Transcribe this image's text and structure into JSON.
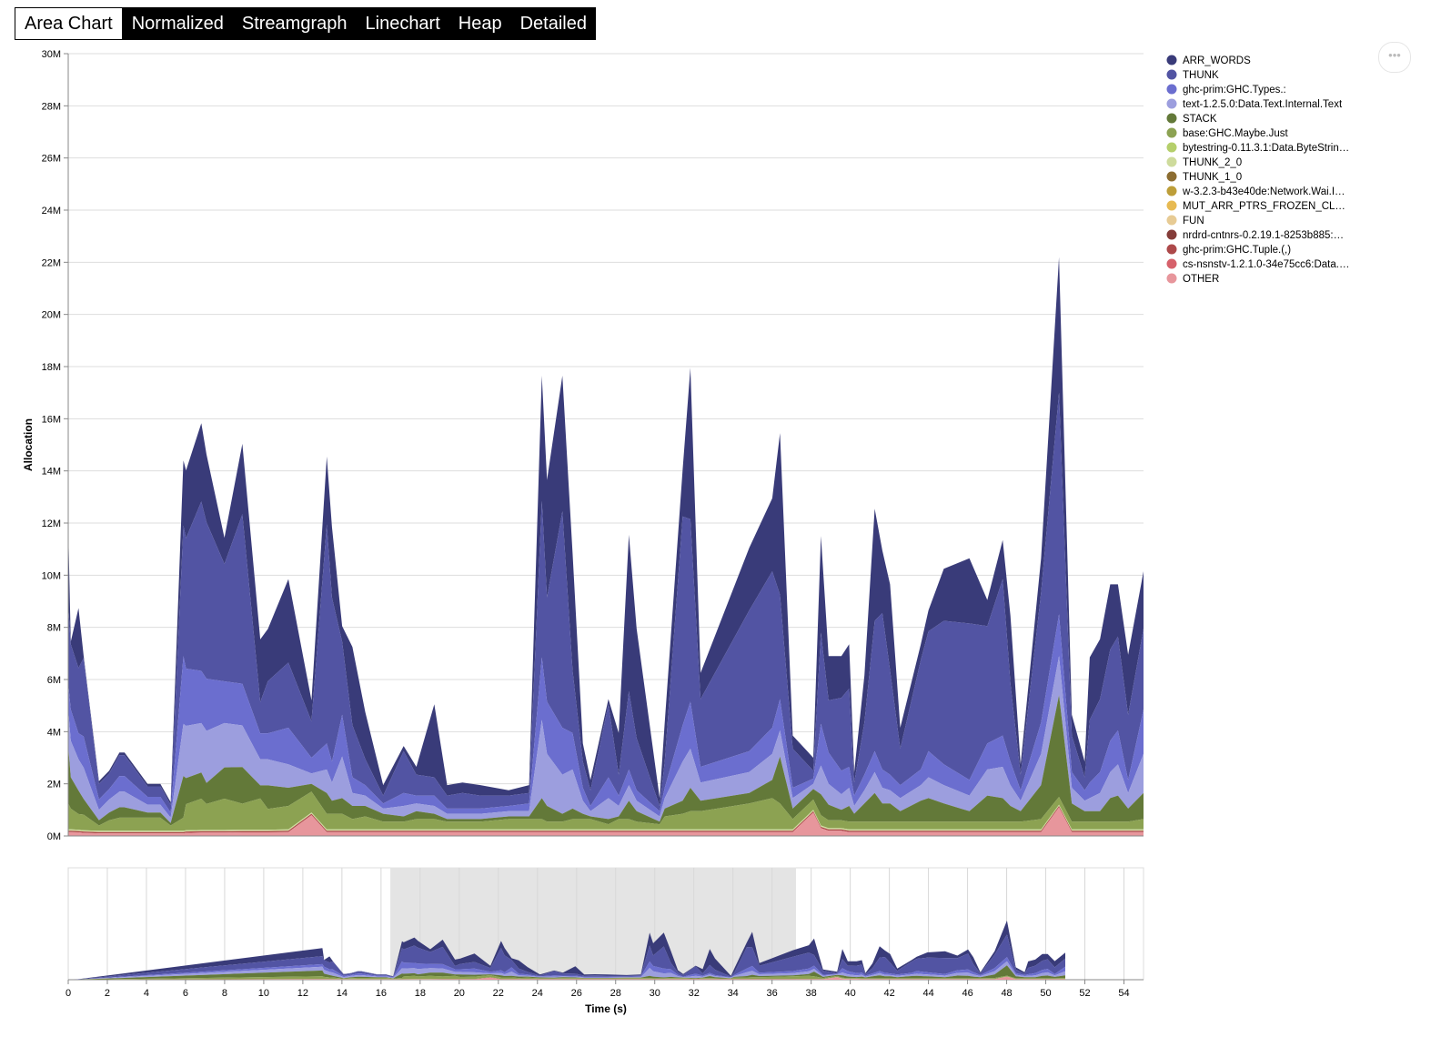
{
  "tabs": [
    {
      "label": "Area Chart",
      "active": true
    },
    {
      "label": "Normalized",
      "active": false
    },
    {
      "label": "Streamgraph",
      "active": false
    },
    {
      "label": "Linechart",
      "active": false
    },
    {
      "label": "Heap",
      "active": false
    },
    {
      "label": "Detailed",
      "active": false
    }
  ],
  "menu_icon": "more-horizontal-icon",
  "chart_data": {
    "type": "area",
    "stacked": true,
    "xlabel": "Time (s)",
    "ylabel": "Allocation",
    "xlim": [
      12.9,
      54.9
    ],
    "ylim": [
      0,
      30
    ],
    "y_unit_suffix": "M",
    "yticks": [
      "0M",
      "2M",
      "4M",
      "6M",
      "8M",
      "10M",
      "12M",
      "14M",
      "16M",
      "18M",
      "20M",
      "22M",
      "24M",
      "26M",
      "28M",
      "30M"
    ],
    "overview_xlim": [
      0,
      55
    ],
    "overview_xticks": [
      "0",
      "2",
      "4",
      "6",
      "8",
      "10",
      "12",
      "14",
      "16",
      "18",
      "20",
      "22",
      "24",
      "26",
      "28",
      "30",
      "32",
      "34",
      "36",
      "38",
      "40",
      "42",
      "44",
      "46",
      "48",
      "50",
      "52",
      "54"
    ],
    "brush_range": [
      16.5,
      37.2
    ],
    "grid": true,
    "legend_position": "right",
    "legend": [
      {
        "name": "ARR_WORDS",
        "color": "#393b79"
      },
      {
        "name": "THUNK",
        "color": "#5254a3"
      },
      {
        "name": "ghc-prim:GHC.Types.:",
        "color": "#6b6ecf"
      },
      {
        "name": "text-1.2.5.0:Data.Text.Internal.Text",
        "color": "#9c9ede"
      },
      {
        "name": "STACK",
        "color": "#637939"
      },
      {
        "name": "base:GHC.Maybe.Just",
        "color": "#8ca252"
      },
      {
        "name": "bytestring-0.11.3.1:Data.ByteStrin…",
        "color": "#b5cf6b"
      },
      {
        "name": "THUNK_2_0",
        "color": "#cedb9c"
      },
      {
        "name": "THUNK_1_0",
        "color": "#8c6d31"
      },
      {
        "name": "w-3.2.3-b43e40de:Network.Wai.I…",
        "color": "#bd9e39"
      },
      {
        "name": "MUT_ARR_PTRS_FROZEN_CL…",
        "color": "#e7ba52"
      },
      {
        "name": "FUN",
        "color": "#e7cb94"
      },
      {
        "name": "nrdrd-cntnrs-0.2.19.1-8253b885:…",
        "color": "#843c39"
      },
      {
        "name": "ghc-prim:GHC.Tuple.(,)",
        "color": "#ad494a"
      },
      {
        "name": "cs-nsnstv-1.2.1.0-34e75cc6:Data.…",
        "color": "#d6616b"
      },
      {
        "name": "OTHER",
        "color": "#e7969c"
      }
    ],
    "x": [
      12.9,
      13.0,
      13.3,
      13.5,
      14.1,
      14.5,
      14.9,
      15.1,
      16.0,
      16.5,
      16.9,
      17.4,
      17.5,
      18.1,
      18.3,
      19.0,
      19.7,
      20.4,
      20.7,
      21.5,
      22.4,
      23.0,
      23.2,
      23.6,
      24.0,
      24.5,
      25.2,
      26.0,
      26.5,
      27.2,
      27.7,
      28.3,
      29.0,
      30.1,
      30.9,
      31.4,
      31.6,
      32.2,
      32.6,
      33.0,
      33.3,
      34.0,
      34.4,
      34.8,
      35.1,
      36.0,
      36.2,
      36.9,
      37.2,
      37.6,
      39.5,
      40.4,
      40.7,
      41.2,
      42.0,
      42.3,
      42.6,
      43.1,
      43.4,
      43.6,
      44.0,
      44.4,
      44.7,
      45.0,
      45.4,
      46.2,
      46.5,
      47.1,
      48.1,
      48.8,
      49.4,
      49.7,
      50.1,
      50.9,
      51.6,
      52.1,
      52.6,
      52.8,
      53.2,
      53.6,
      53.9,
      54.3,
      54.9
    ],
    "series": [
      {
        "name": "OTHER",
        "values": [
          0.15,
          0.15,
          0.14,
          0.12,
          0.1,
          0.1,
          0.1,
          0.1,
          0.1,
          0.1,
          0.1,
          0.1,
          0.12,
          0.13,
          0.13,
          0.13,
          0.14,
          0.14,
          0.14,
          0.15,
          0.8,
          0.15,
          0.15,
          0.15,
          0.15,
          0.15,
          0.15,
          0.15,
          0.15,
          0.15,
          0.15,
          0.15,
          0.15,
          0.15,
          0.15,
          0.15,
          0.15,
          0.15,
          0.15,
          0.15,
          0.15,
          0.15,
          0.15,
          0.15,
          0.15,
          0.15,
          0.15,
          0.15,
          0.15,
          0.15,
          0.15,
          0.15,
          0.15,
          0.15,
          0.9,
          0.3,
          0.2,
          0.2,
          0.15,
          0.15,
          0.15,
          0.15,
          0.15,
          0.15,
          0.15,
          0.15,
          0.15,
          0.15,
          0.15,
          0.15,
          0.15,
          0.15,
          0.15,
          0.15,
          1.1,
          0.15,
          0.15,
          0.15,
          0.15,
          0.15,
          0.15,
          0.15,
          0.15
        ]
      },
      {
        "name": "ghc-prim:GHC.Tuple.(,)",
        "values": [
          0.05,
          0.05,
          0.05,
          0.05,
          0.05,
          0.05,
          0.05,
          0.05,
          0.05,
          0.05,
          0.05,
          0.05,
          0.05,
          0.05,
          0.05,
          0.05,
          0.05,
          0.05,
          0.05,
          0.05,
          0.05,
          0.05,
          0.05,
          0.05,
          0.05,
          0.05,
          0.05,
          0.05,
          0.05,
          0.05,
          0.05,
          0.05,
          0.05,
          0.05,
          0.05,
          0.05,
          0.05,
          0.05,
          0.05,
          0.05,
          0.05,
          0.05,
          0.05,
          0.05,
          0.05,
          0.05,
          0.05,
          0.05,
          0.05,
          0.05,
          0.05,
          0.05,
          0.05,
          0.05,
          0.05,
          0.05,
          0.05,
          0.05,
          0.05,
          0.05,
          0.05,
          0.05,
          0.05,
          0.05,
          0.05,
          0.05,
          0.05,
          0.05,
          0.05,
          0.05,
          0.05,
          0.05,
          0.05,
          0.05,
          0.05,
          0.05,
          0.05,
          0.05,
          0.05,
          0.05,
          0.05,
          0.05,
          0.05
        ]
      },
      {
        "name": "THUNK_2_0",
        "values": [
          0.05,
          0.05,
          0.05,
          0.05,
          0.05,
          0.05,
          0.05,
          0.05,
          0.05,
          0.05,
          0.05,
          0.05,
          0.05,
          0.05,
          0.05,
          0.05,
          0.05,
          0.05,
          0.05,
          0.05,
          0.05,
          0.05,
          0.05,
          0.05,
          0.05,
          0.05,
          0.05,
          0.05,
          0.05,
          0.05,
          0.05,
          0.05,
          0.05,
          0.05,
          0.05,
          0.05,
          0.05,
          0.05,
          0.05,
          0.05,
          0.05,
          0.05,
          0.05,
          0.05,
          0.05,
          0.05,
          0.05,
          0.05,
          0.05,
          0.05,
          0.05,
          0.05,
          0.05,
          0.05,
          0.05,
          0.05,
          0.05,
          0.05,
          0.05,
          0.05,
          0.05,
          0.05,
          0.05,
          0.05,
          0.05,
          0.05,
          0.05,
          0.05,
          0.05,
          0.05,
          0.05,
          0.05,
          0.05,
          0.05,
          0.05,
          0.05,
          0.05,
          0.05,
          0.05,
          0.05,
          0.05,
          0.05,
          0.05
        ]
      },
      {
        "name": "base:GHC.Maybe.Just",
        "values": [
          1.0,
          0.8,
          0.6,
          0.6,
          0.2,
          0.4,
          0.5,
          0.5,
          0.5,
          0.5,
          0.2,
          0.5,
          1.0,
          1.2,
          1.0,
          1.2,
          1.0,
          1.2,
          0.8,
          0.9,
          0.8,
          0.6,
          0.6,
          0.6,
          0.4,
          0.5,
          0.3,
          0.3,
          0.4,
          0.4,
          0.3,
          0.3,
          0.3,
          0.4,
          0.4,
          0.4,
          0.3,
          0.3,
          0.4,
          0.4,
          0.4,
          0.2,
          0.4,
          0.4,
          0.3,
          0.2,
          0.5,
          0.6,
          0.7,
          0.7,
          1.0,
          1.2,
          1.0,
          0.4,
          0.4,
          0.4,
          0.3,
          0.3,
          0.3,
          0.3,
          0.3,
          0.3,
          0.3,
          0.3,
          0.3,
          0.3,
          0.3,
          0.3,
          0.3,
          0.3,
          0.3,
          0.3,
          0.3,
          0.4,
          0.3,
          0.3,
          0.3,
          0.3,
          0.3,
          0.3,
          0.3,
          0.3,
          0.4
        ]
      },
      {
        "name": "STACK",
        "values": [
          2.2,
          1.2,
          0.9,
          0.6,
          0.2,
          0.3,
          0.4,
          0.4,
          0.2,
          0.2,
          0.1,
          1.6,
          1.0,
          1.0,
          0.8,
          1.2,
          1.4,
          0.5,
          0.9,
          0.7,
          0.3,
          0.8,
          0.5,
          0.6,
          0.5,
          0.4,
          0.3,
          0.2,
          0.3,
          0.2,
          0.1,
          0.1,
          0.1,
          0.1,
          0.1,
          0.8,
          0.6,
          0.3,
          0.4,
          0.2,
          0.1,
          0.2,
          0.1,
          0.7,
          0.4,
          0.1,
          0.3,
          0.5,
          0.9,
          0.4,
          0.4,
          0.7,
          1.8,
          0.4,
          0.4,
          0.8,
          0.6,
          0.4,
          0.6,
          0.3,
          0.7,
          1.1,
          0.7,
          0.7,
          0.4,
          0.8,
          0.9,
          0.7,
          0.4,
          1.0,
          0.9,
          0.6,
          0.4,
          1.3,
          3.9,
          0.7,
          0.4,
          0.4,
          0.4,
          0.9,
          1.0,
          0.5,
          1.0
        ]
      },
      {
        "name": "text-1.2.5.0:Data.Text.Internal.Text",
        "values": [
          1.4,
          1.4,
          1.2,
          1.2,
          0.4,
          0.5,
          0.6,
          0.6,
          0.3,
          0.3,
          0.2,
          2.0,
          2.0,
          1.9,
          2.0,
          1.7,
          1.6,
          1.0,
          1.0,
          0.9,
          0.4,
          0.9,
          0.7,
          1.6,
          0.5,
          0.4,
          0.2,
          0.4,
          0.3,
          0.3,
          0.2,
          0.2,
          0.2,
          0.2,
          0.2,
          3.0,
          2.0,
          1.5,
          1.5,
          0.5,
          0.2,
          0.8,
          0.4,
          0.6,
          0.4,
          0.2,
          0.4,
          1.5,
          1.5,
          0.7,
          0.8,
          1.0,
          1.0,
          0.4,
          0.2,
          1.1,
          0.8,
          0.6,
          0.7,
          0.3,
          0.5,
          0.8,
          0.6,
          0.5,
          0.5,
          0.6,
          0.8,
          0.7,
          0.6,
          1.0,
          1.2,
          0.8,
          0.4,
          1.2,
          1.5,
          0.6,
          0.4,
          0.5,
          0.7,
          1.0,
          1.2,
          0.6,
          1.5
        ]
      },
      {
        "name": "ghc-prim:GHC.Types.:",
        "values": [
          1.0,
          1.2,
          1.0,
          1.2,
          0.4,
          0.4,
          0.6,
          0.6,
          0.3,
          0.3,
          0.2,
          2.6,
          2.2,
          2.0,
          2.0,
          1.6,
          1.6,
          1.0,
          1.0,
          1.4,
          0.6,
          1.0,
          0.8,
          1.6,
          0.6,
          0.4,
          0.2,
          0.5,
          0.3,
          0.4,
          0.2,
          0.2,
          0.2,
          0.2,
          0.3,
          2.4,
          2.0,
          1.8,
          1.4,
          0.5,
          0.2,
          0.8,
          0.4,
          0.6,
          0.4,
          0.2,
          0.4,
          1.4,
          1.8,
          0.6,
          0.8,
          1.0,
          1.2,
          0.4,
          0.2,
          1.6,
          1.2,
          0.9,
          0.8,
          0.4,
          0.6,
          0.8,
          0.7,
          0.6,
          0.5,
          0.6,
          1.0,
          0.8,
          0.6,
          1.0,
          1.2,
          0.9,
          0.4,
          1.2,
          1.6,
          0.6,
          0.4,
          0.6,
          0.8,
          1.2,
          1.3,
          0.5,
          1.7
        ]
      },
      {
        "name": "THUNK",
        "values": [
          3.0,
          2.5,
          2.5,
          3.0,
          0.6,
          0.6,
          0.8,
          0.8,
          0.4,
          0.4,
          0.3,
          5.0,
          5.0,
          6.5,
          6.0,
          4.5,
          6.5,
          1.2,
          2.0,
          2.5,
          1.4,
          8.4,
          6.3,
          2.8,
          2.0,
          1.0,
          0.3,
          1.6,
          0.8,
          0.7,
          0.5,
          0.6,
          0.5,
          0.4,
          0.4,
          6.0,
          4.0,
          8.3,
          2.4,
          1.0,
          0.6,
          2.8,
          0.8,
          3.0,
          2.0,
          0.2,
          1.0,
          8.0,
          7.0,
          2.6,
          5.4,
          6.0,
          4.0,
          1.5,
          0.3,
          3.5,
          2.0,
          2.8,
          3.0,
          0.5,
          2.0,
          5.0,
          6.0,
          4.0,
          1.4,
          4.2,
          4.6,
          5.5,
          6.0,
          4.5,
          6.0,
          3.0,
          0.6,
          5.0,
          8.5,
          1.4,
          0.5,
          2.4,
          2.8,
          3.5,
          3.6,
          2.5,
          3.1
        ]
      },
      {
        "name": "ARR_WORDS",
        "values": [
          3.0,
          0.1,
          2.3,
          0.1,
          0.1,
          0.1,
          0.1,
          0.1,
          0.1,
          0.1,
          0.1,
          2.5,
          2.6,
          3.0,
          2.6,
          1.0,
          2.7,
          2.4,
          2.0,
          3.2,
          0.8,
          2.6,
          2.7,
          0.6,
          3.0,
          1.8,
          0.4,
          0.2,
          0.3,
          2.8,
          0.4,
          0.4,
          0.4,
          0.2,
          0.3,
          4.8,
          4.5,
          5.2,
          4.5,
          0.7,
          0.4,
          0.2,
          1.6,
          6.0,
          4.2,
          0.3,
          1.5,
          1.8,
          5.8,
          1.0,
          2.4,
          2.8,
          6.2,
          0.5,
          0.5,
          3.7,
          1.7,
          1.6,
          1.7,
          0.4,
          1.8,
          4.3,
          2.4,
          3.3,
          0.8,
          0.6,
          0.8,
          2.0,
          2.5,
          1.0,
          1.5,
          2.6,
          0.4,
          1.3,
          5.2,
          0.8,
          0.6,
          2.4,
          2.3,
          2.5,
          2.0,
          2.3,
          2.2
        ]
      }
    ]
  }
}
